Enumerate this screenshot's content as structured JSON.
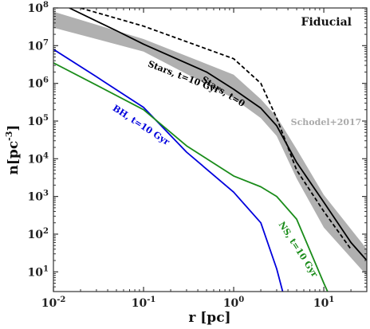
{
  "chart_data": {
    "type": "line",
    "panel_label": "Fiducial",
    "xlabel": "r [pc]",
    "ylabel": "n[pc",
    "ylabel_exp": "-3",
    "ylabel_end": "]",
    "xscale": "log",
    "yscale": "log",
    "xlim": [
      0.01,
      30
    ],
    "ylim": [
      3,
      100000000
    ],
    "x_ticks": [
      {
        "value": 0.01,
        "base": "10",
        "exp": "-2"
      },
      {
        "value": 0.1,
        "base": "10",
        "exp": "-1"
      },
      {
        "value": 1,
        "base": "10",
        "exp": "0"
      },
      {
        "value": 10,
        "base": "10",
        "exp": "1"
      }
    ],
    "y_ticks": [
      {
        "value": 10,
        "base": "10",
        "exp": "1"
      },
      {
        "value": 100,
        "base": "10",
        "exp": "2"
      },
      {
        "value": 1000,
        "base": "10",
        "exp": "3"
      },
      {
        "value": 10000,
        "base": "10",
        "exp": "4"
      },
      {
        "value": 100000,
        "base": "10",
        "exp": "5"
      },
      {
        "value": 1000000,
        "base": "10",
        "exp": "6"
      },
      {
        "value": 10000000,
        "base": "10",
        "exp": "7"
      },
      {
        "value": 100000000,
        "base": "10",
        "exp": "8"
      }
    ],
    "band": {
      "name": "Schodel+2017",
      "color": "#b0b0b0",
      "points": [
        {
          "x": 0.01,
          "lo": 30000000,
          "hi": 80000000
        },
        {
          "x": 0.1,
          "lo": 7000000,
          "hi": 15000000
        },
        {
          "x": 1,
          "lo": 400000,
          "hi": 1700000
        },
        {
          "x": 2,
          "lo": 120000,
          "hi": 380000
        },
        {
          "x": 3,
          "lo": 40000,
          "hi": 130000
        },
        {
          "x": 5,
          "lo": 3000,
          "hi": 18000
        },
        {
          "x": 10,
          "lo": 150,
          "hi": 1100
        },
        {
          "x": 30,
          "lo": 8,
          "hi": 40
        }
      ]
    },
    "series": [
      {
        "name": "Stars, t=0",
        "color": "#000000",
        "dash": true,
        "points": [
          [
            0.02,
            100000000
          ],
          [
            0.1,
            33000000
          ],
          [
            1,
            4500000
          ],
          [
            2,
            1000000
          ],
          [
            3,
            120000
          ],
          [
            5,
            5000
          ],
          [
            10,
            400
          ],
          [
            20,
            40
          ]
        ]
      },
      {
        "name": "Stars, t=10 Gyr",
        "color": "#000000",
        "dash": false,
        "points": [
          [
            0.015,
            100000000
          ],
          [
            0.05,
            25000000
          ],
          [
            0.1,
            11000000
          ],
          [
            0.5,
            2000000
          ],
          [
            1,
            700000
          ],
          [
            2,
            220000
          ],
          [
            3,
            75000
          ],
          [
            5,
            8000
          ],
          [
            10,
            700
          ],
          [
            20,
            60
          ],
          [
            30,
            20
          ]
        ]
      },
      {
        "name": "BH, t=10 Gyr",
        "color": "#0000dd",
        "dash": false,
        "points": [
          [
            0.01,
            8000000
          ],
          [
            0.03,
            1500000
          ],
          [
            0.1,
            230000
          ],
          [
            0.3,
            15000
          ],
          [
            1,
            1300
          ],
          [
            2,
            200
          ],
          [
            3,
            12
          ],
          [
            3.5,
            3
          ]
        ]
      },
      {
        "name": "NS, t=10 Gyr",
        "color": "#1a8c1a",
        "dash": false,
        "points": [
          [
            0.01,
            3500000
          ],
          [
            0.03,
            900000
          ],
          [
            0.1,
            200000
          ],
          [
            0.3,
            22000
          ],
          [
            1,
            3500
          ],
          [
            2,
            1800
          ],
          [
            3,
            1000
          ],
          [
            5,
            250
          ],
          [
            10,
            5
          ],
          [
            11,
            3
          ]
        ]
      }
    ],
    "labels": {
      "stars_t0": "Stars, t=0",
      "stars_t10": "Stars, t=10 Gyr",
      "bh": "BH, t=10 Gyr",
      "ns": "NS, t=10 Gyr",
      "schodel": "Schodel+2017"
    }
  }
}
